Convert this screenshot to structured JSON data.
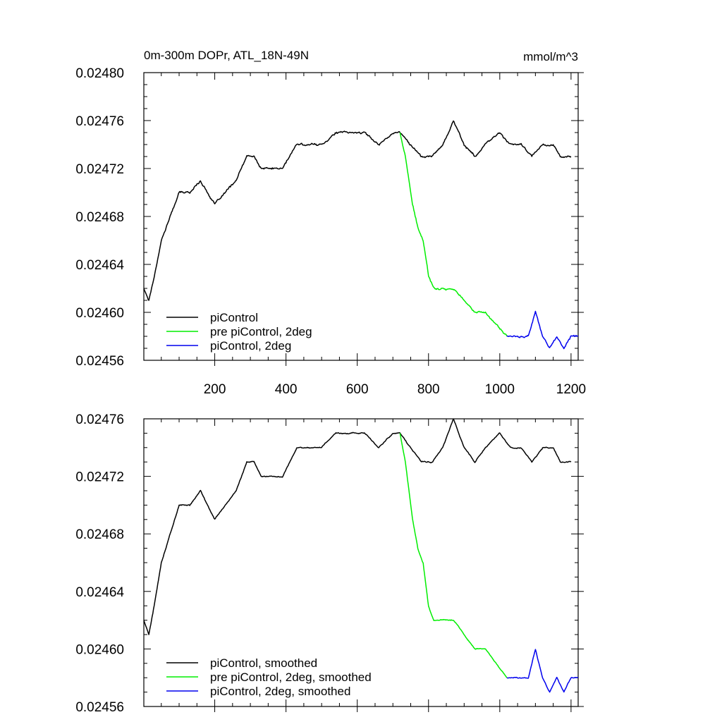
{
  "chart_data": [
    {
      "type": "line",
      "title": "0m-300m DOPr, ATL_18N-49N",
      "units": "mmol/m^3",
      "xlim": [
        1,
        1220
      ],
      "ylim": [
        0.02456,
        0.0248
      ],
      "xticks": [
        200,
        400,
        600,
        800,
        1000,
        1200
      ],
      "xtick_labels": [
        "200",
        "400",
        "600",
        "800",
        "1000",
        "1200"
      ],
      "yticks": [
        0.02456,
        0.0246,
        0.02464,
        0.02468,
        0.02472,
        0.02476,
        0.0248
      ],
      "ytick_labels": [
        "0.02456",
        "0.02460",
        "0.02464",
        "0.02468",
        "0.02472",
        "0.02476",
        "0.02480"
      ],
      "legend_position": "bottom-left",
      "noise": 9e-07,
      "series": [
        {
          "name": "piControl",
          "color": "#000000",
          "points": [
            [
              1,
              0.02462
            ],
            [
              15,
              0.02461
            ],
            [
              30,
              0.02463
            ],
            [
              50,
              0.02466
            ],
            [
              75,
              0.02468
            ],
            [
              100,
              0.0247
            ],
            [
              130,
              0.0247
            ],
            [
              160,
              0.02471
            ],
            [
              180,
              0.0247
            ],
            [
              200,
              0.02469
            ],
            [
              230,
              0.0247
            ],
            [
              260,
              0.02471
            ],
            [
              290,
              0.02473
            ],
            [
              310,
              0.02473
            ],
            [
              330,
              0.02472
            ],
            [
              360,
              0.02472
            ],
            [
              390,
              0.02472
            ],
            [
              410,
              0.02473
            ],
            [
              430,
              0.02474
            ],
            [
              460,
              0.02474
            ],
            [
              500,
              0.02474
            ],
            [
              540,
              0.02475
            ],
            [
              580,
              0.02475
            ],
            [
              620,
              0.02475
            ],
            [
              660,
              0.02474
            ],
            [
              700,
              0.02475
            ],
            [
              720,
              0.02475
            ],
            [
              750,
              0.02474
            ],
            [
              780,
              0.02473
            ],
            [
              810,
              0.02473
            ],
            [
              840,
              0.02474
            ],
            [
              870,
              0.02476
            ],
            [
              900,
              0.02474
            ],
            [
              930,
              0.02473
            ],
            [
              960,
              0.02474
            ],
            [
              1000,
              0.02475
            ],
            [
              1030,
              0.02474
            ],
            [
              1060,
              0.02474
            ],
            [
              1090,
              0.02473
            ],
            [
              1120,
              0.02474
            ],
            [
              1150,
              0.02474
            ],
            [
              1170,
              0.02473
            ],
            [
              1200,
              0.02473
            ]
          ]
        },
        {
          "name": "pre piControl, 2deg",
          "color": "#00ee00",
          "points": [
            [
              720,
              0.02475
            ],
            [
              735,
              0.02473
            ],
            [
              745,
              0.02471
            ],
            [
              755,
              0.02469
            ],
            [
              770,
              0.02467
            ],
            [
              785,
              0.02466
            ],
            [
              800,
              0.02463
            ],
            [
              815,
              0.02462
            ],
            [
              840,
              0.02462
            ],
            [
              870,
              0.02462
            ],
            [
              900,
              0.02461
            ],
            [
              930,
              0.0246
            ],
            [
              960,
              0.0246
            ],
            [
              990,
              0.02459
            ],
            [
              1020,
              0.02458
            ]
          ]
        },
        {
          "name": "piControl, 2deg",
          "color": "#0000ee",
          "points": [
            [
              1020,
              0.02458
            ],
            [
              1050,
              0.02458
            ],
            [
              1080,
              0.02458
            ],
            [
              1100,
              0.0246
            ],
            [
              1120,
              0.02458
            ],
            [
              1140,
              0.02457
            ],
            [
              1160,
              0.02458
            ],
            [
              1180,
              0.02457
            ],
            [
              1200,
              0.02458
            ],
            [
              1220,
              0.02458
            ]
          ]
        }
      ]
    },
    {
      "type": "line",
      "xlim": [
        1,
        1220
      ],
      "ylim": [
        0.02456,
        0.02476
      ],
      "xticks": [
        200,
        400,
        600,
        800,
        1000,
        1200
      ],
      "xtick_labels": [],
      "yticks": [
        0.02456,
        0.0246,
        0.02464,
        0.02468,
        0.02472,
        0.02476
      ],
      "ytick_labels": [
        "0.02456",
        "0.02460",
        "0.02464",
        "0.02468",
        "0.02472",
        "0.02476"
      ],
      "legend_position": "bottom-left",
      "noise": 4e-07,
      "series": [
        {
          "name": "piControl, smoothed",
          "color": "#000000",
          "points": [
            [
              1,
              0.02462
            ],
            [
              15,
              0.02461
            ],
            [
              30,
              0.02463
            ],
            [
              50,
              0.02466
            ],
            [
              75,
              0.02468
            ],
            [
              100,
              0.0247
            ],
            [
              130,
              0.0247
            ],
            [
              160,
              0.02471
            ],
            [
              180,
              0.0247
            ],
            [
              200,
              0.02469
            ],
            [
              230,
              0.0247
            ],
            [
              260,
              0.02471
            ],
            [
              290,
              0.02473
            ],
            [
              310,
              0.02473
            ],
            [
              330,
              0.02472
            ],
            [
              360,
              0.02472
            ],
            [
              390,
              0.02472
            ],
            [
              410,
              0.02473
            ],
            [
              430,
              0.02474
            ],
            [
              460,
              0.02474
            ],
            [
              500,
              0.02474
            ],
            [
              540,
              0.02475
            ],
            [
              580,
              0.02475
            ],
            [
              620,
              0.02475
            ],
            [
              660,
              0.02474
            ],
            [
              700,
              0.02475
            ],
            [
              720,
              0.02475
            ],
            [
              750,
              0.02474
            ],
            [
              780,
              0.02473
            ],
            [
              810,
              0.02473
            ],
            [
              840,
              0.02474
            ],
            [
              870,
              0.02476
            ],
            [
              900,
              0.02474
            ],
            [
              930,
              0.02473
            ],
            [
              960,
              0.02474
            ],
            [
              1000,
              0.02475
            ],
            [
              1030,
              0.02474
            ],
            [
              1060,
              0.02474
            ],
            [
              1090,
              0.02473
            ],
            [
              1120,
              0.02474
            ],
            [
              1150,
              0.02474
            ],
            [
              1170,
              0.02473
            ],
            [
              1200,
              0.02473
            ]
          ]
        },
        {
          "name": "pre piControl, 2deg, smoothed",
          "color": "#00ee00",
          "points": [
            [
              720,
              0.02475
            ],
            [
              735,
              0.02473
            ],
            [
              745,
              0.02471
            ],
            [
              755,
              0.02469
            ],
            [
              770,
              0.02467
            ],
            [
              785,
              0.02466
            ],
            [
              800,
              0.02463
            ],
            [
              815,
              0.02462
            ],
            [
              840,
              0.02462
            ],
            [
              870,
              0.02462
            ],
            [
              900,
              0.02461
            ],
            [
              930,
              0.0246
            ],
            [
              960,
              0.0246
            ],
            [
              990,
              0.02459
            ],
            [
              1020,
              0.02458
            ]
          ]
        },
        {
          "name": "piControl, 2deg, smoothed",
          "color": "#0000ee",
          "points": [
            [
              1020,
              0.02458
            ],
            [
              1050,
              0.02458
            ],
            [
              1080,
              0.02458
            ],
            [
              1100,
              0.0246
            ],
            [
              1120,
              0.02458
            ],
            [
              1140,
              0.02457
            ],
            [
              1160,
              0.02458
            ],
            [
              1180,
              0.02457
            ],
            [
              1200,
              0.02458
            ],
            [
              1220,
              0.02458
            ]
          ]
        }
      ]
    }
  ]
}
